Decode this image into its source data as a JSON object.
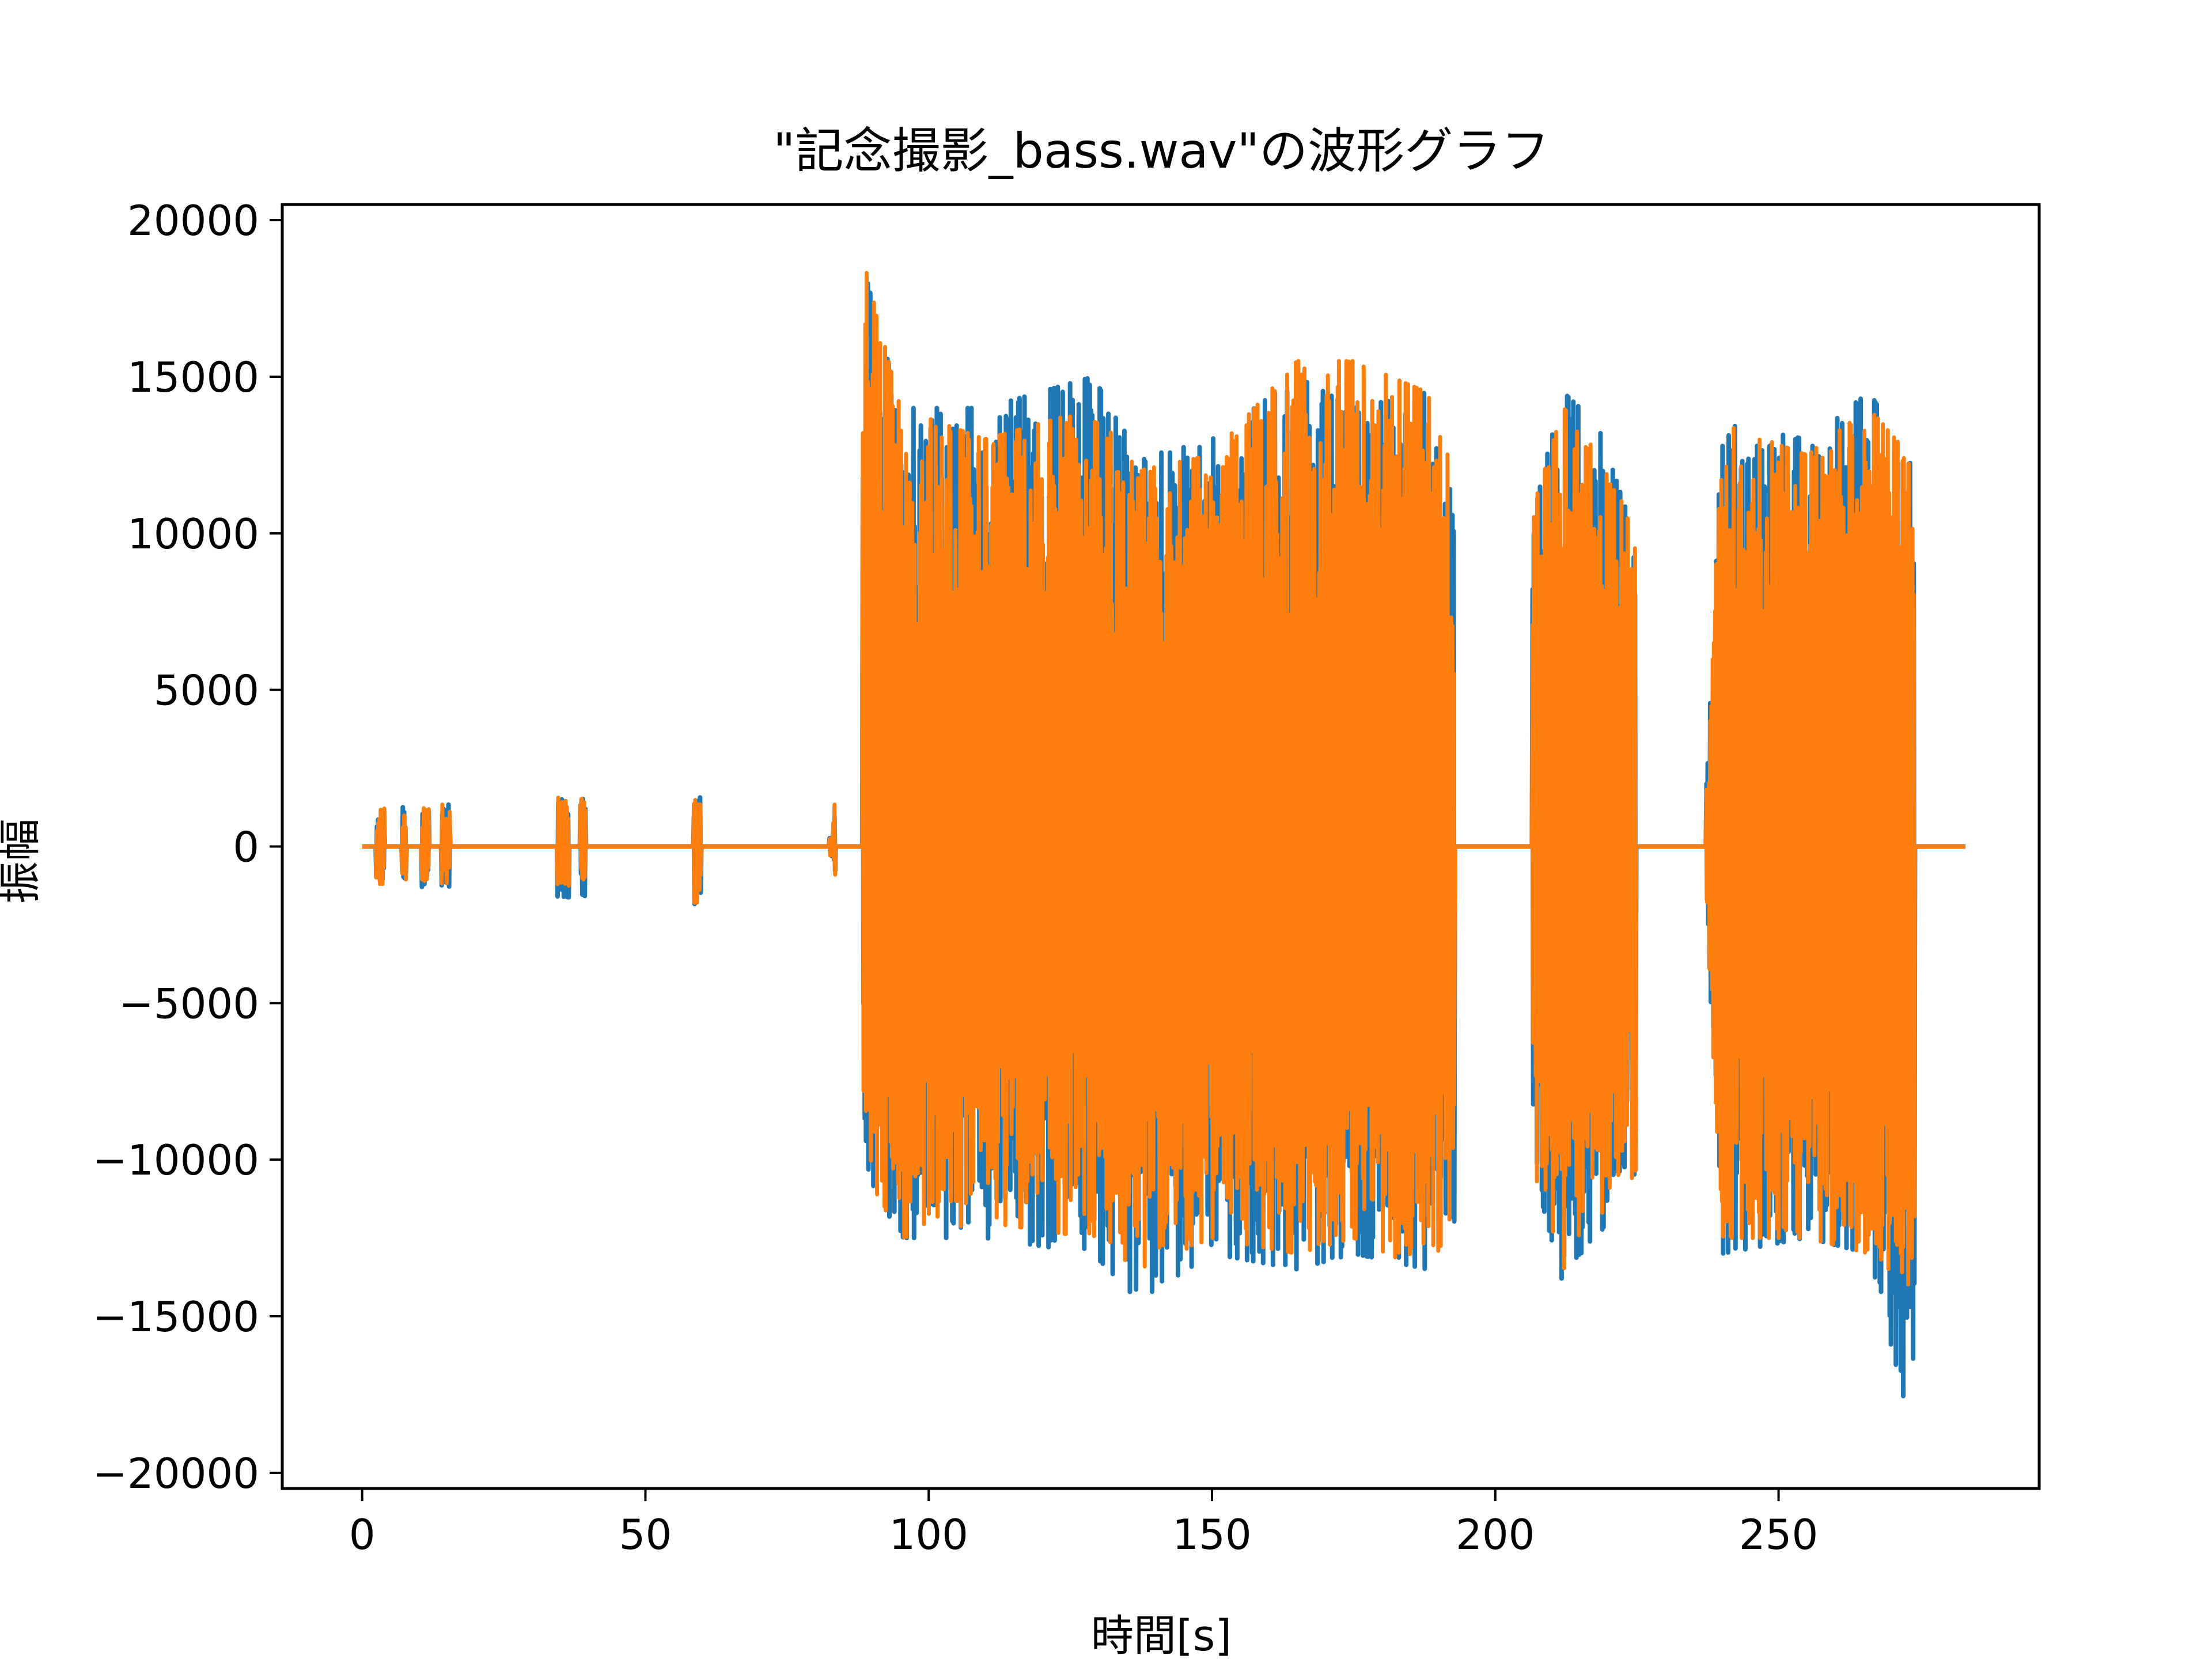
{
  "chart_data": {
    "type": "line",
    "title": "\"記念撮影_bass.wav\"の波形グラフ",
    "xlabel": "時間[s]",
    "ylabel": "振幅",
    "xlim": [
      -14.1,
      296
    ],
    "ylim": [
      -20500,
      20500
    ],
    "x_ticks": [
      0,
      50,
      100,
      150,
      200,
      250
    ],
    "x_tick_labels": [
      "0",
      "50",
      "100",
      "150",
      "200",
      "250"
    ],
    "y_ticks": [
      20000,
      15000,
      10000,
      5000,
      0,
      -5000,
      -10000,
      -15000,
      -20000
    ],
    "y_tick_labels": [
      "20000",
      "15000",
      "10000",
      "5000",
      "0",
      "−5000",
      "−10000",
      "−15000",
      "−20000"
    ],
    "grid": false,
    "legend": "none",
    "duration_s": 283,
    "series": [
      {
        "color": "#1f77b4",
        "envelope": [
          {
            "x": 0,
            "max": 0,
            "min": 0
          },
          {
            "x": 3,
            "max": 1200,
            "min": -1300
          },
          {
            "x": 11,
            "max": 1300,
            "min": -1300
          },
          {
            "x": 35,
            "max": 1500,
            "min": -1600
          },
          {
            "x": 59,
            "max": 1600,
            "min": -2000
          },
          {
            "x": 83,
            "max": 300,
            "min": -300
          },
          {
            "x": 88.5,
            "max": 18500,
            "min": -10300
          },
          {
            "x": 95,
            "max": 14000,
            "min": -12500
          },
          {
            "x": 110,
            "max": 14000,
            "min": -12500
          },
          {
            "x": 129,
            "max": 15000,
            "min": -13000
          },
          {
            "x": 137,
            "max": 12500,
            "min": -14500
          },
          {
            "x": 150,
            "max": 13000,
            "min": -13000
          },
          {
            "x": 165,
            "max": 15000,
            "min": -13500
          },
          {
            "x": 175,
            "max": 14000,
            "min": -13000
          },
          {
            "x": 188,
            "max": 14500,
            "min": -13500
          },
          {
            "x": 192.5,
            "max": 12000,
            "min": -12000
          },
          {
            "x": 207,
            "max": 11000,
            "min": -10500
          },
          {
            "x": 212,
            "max": 14500,
            "min": -14000
          },
          {
            "x": 218,
            "max": 13500,
            "min": -12500
          },
          {
            "x": 224.5,
            "max": 10000,
            "min": -10500
          },
          {
            "x": 237.5,
            "max": 3000,
            "min": -3000
          },
          {
            "x": 240,
            "max": 13500,
            "min": -13000
          },
          {
            "x": 255,
            "max": 13000,
            "min": -12500
          },
          {
            "x": 266,
            "max": 14500,
            "min": -13000
          },
          {
            "x": 273,
            "max": 12500,
            "min": -18300
          },
          {
            "x": 283,
            "max": 0,
            "min": 0
          }
        ]
      },
      {
        "color": "#ff7f0e",
        "envelope": [
          {
            "x": 0,
            "max": 0,
            "min": 0
          },
          {
            "x": 3,
            "max": 1200,
            "min": -1200
          },
          {
            "x": 11,
            "max": 1300,
            "min": -1200
          },
          {
            "x": 35,
            "max": 1600,
            "min": -1500
          },
          {
            "x": 59,
            "max": 1600,
            "min": -1800
          },
          {
            "x": 83,
            "max": 300,
            "min": -300
          },
          {
            "x": 88.5,
            "max": 18700,
            "min": -10300
          },
          {
            "x": 95,
            "max": 14000,
            "min": -12500
          },
          {
            "x": 110,
            "max": 13000,
            "min": -12000
          },
          {
            "x": 129,
            "max": 14000,
            "min": -12500
          },
          {
            "x": 137,
            "max": 12000,
            "min": -13500
          },
          {
            "x": 150,
            "max": 12500,
            "min": -12500
          },
          {
            "x": 165,
            "max": 15500,
            "min": -13000
          },
          {
            "x": 175,
            "max": 15500,
            "min": -12500
          },
          {
            "x": 188,
            "max": 14500,
            "min": -13600
          },
          {
            "x": 192.5,
            "max": 12000,
            "min": -12000
          },
          {
            "x": 207,
            "max": 11000,
            "min": -10500
          },
          {
            "x": 212,
            "max": 14000,
            "min": -13500
          },
          {
            "x": 218,
            "max": 13000,
            "min": -12000
          },
          {
            "x": 224.5,
            "max": 10000,
            "min": -10500
          },
          {
            "x": 237.5,
            "max": 3000,
            "min": -3000
          },
          {
            "x": 240,
            "max": 13500,
            "min": -12500
          },
          {
            "x": 255,
            "max": 12500,
            "min": -12500
          },
          {
            "x": 266,
            "max": 14000,
            "min": -13000
          },
          {
            "x": 273,
            "max": 12500,
            "min": -14000
          },
          {
            "x": 283,
            "max": 0,
            "min": 0
          }
        ]
      }
    ]
  }
}
